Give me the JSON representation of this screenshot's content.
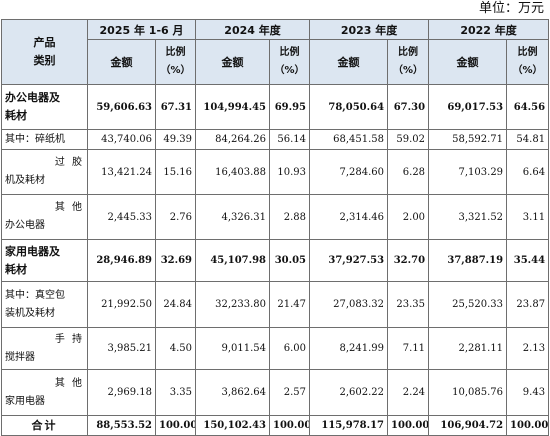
{
  "unit_label": "单位：万元",
  "header": {
    "category": [
      "产品",
      "类别"
    ],
    "periods": [
      "2025 年 1-6 月",
      "2024 年度",
      "2023 年度",
      "2022 年度"
    ],
    "amount_label": "金额",
    "ratio_label": [
      "比例",
      "（%）"
    ]
  },
  "rows": [
    {
      "label": [
        "办公电器及",
        "耗材"
      ],
      "bold": true,
      "values": [
        "59,606.63",
        "67.31",
        "104,994.45",
        "69.95",
        "78,050.64",
        "67.30",
        "69,017.53",
        "64.56"
      ]
    },
    {
      "label": [
        "其中：碎纸机"
      ],
      "values": [
        "43,740.06",
        "49.39",
        "84,264.26",
        "56.14",
        "68,451.58",
        "59.02",
        "58,592.71",
        "54.81"
      ]
    },
    {
      "label": [
        "过  胶",
        "机及耗材"
      ],
      "values": [
        "13,421.24",
        "15.16",
        "16,403.88",
        "10.93",
        "7,284.60",
        "6.28",
        "7,103.29",
        "6.64"
      ]
    },
    {
      "label": [
        "其  他",
        "办公电器"
      ],
      "values": [
        "2,445.33",
        "2.76",
        "4,326.31",
        "2.88",
        "2,314.46",
        "2.00",
        "3,321.52",
        "3.11"
      ]
    },
    {
      "label": [
        "家用电器及",
        "耗材"
      ],
      "bold": true,
      "values": [
        "28,946.89",
        "32.69",
        "45,107.98",
        "30.05",
        "37,927.53",
        "32.70",
        "37,887.19",
        "35.44"
      ]
    },
    {
      "label": [
        "其中：真空包",
        "装机及耗材"
      ],
      "values": [
        "21,992.50",
        "24.84",
        "32,233.80",
        "21.47",
        "27,083.32",
        "23.35",
        "25,520.33",
        "23.87"
      ]
    },
    {
      "label": [
        "手  持",
        "搅拌器"
      ],
      "values": [
        "3,985.21",
        "4.50",
        "9,011.54",
        "6.00",
        "8,241.99",
        "7.11",
        "2,281.11",
        "2.13"
      ]
    },
    {
      "label": [
        "其  他",
        "家用电器"
      ],
      "values": [
        "2,969.18",
        "3.35",
        "3,862.64",
        "2.57",
        "2,602.22",
        "2.24",
        "10,085.76",
        "9.43"
      ]
    },
    {
      "label": [
        "合计"
      ],
      "bold": true,
      "values": [
        "88,553.52",
        "100.00",
        "150,102.43",
        "100.00",
        "115,978.17",
        "100.00",
        "106,904.72",
        "100.00"
      ]
    }
  ]
}
